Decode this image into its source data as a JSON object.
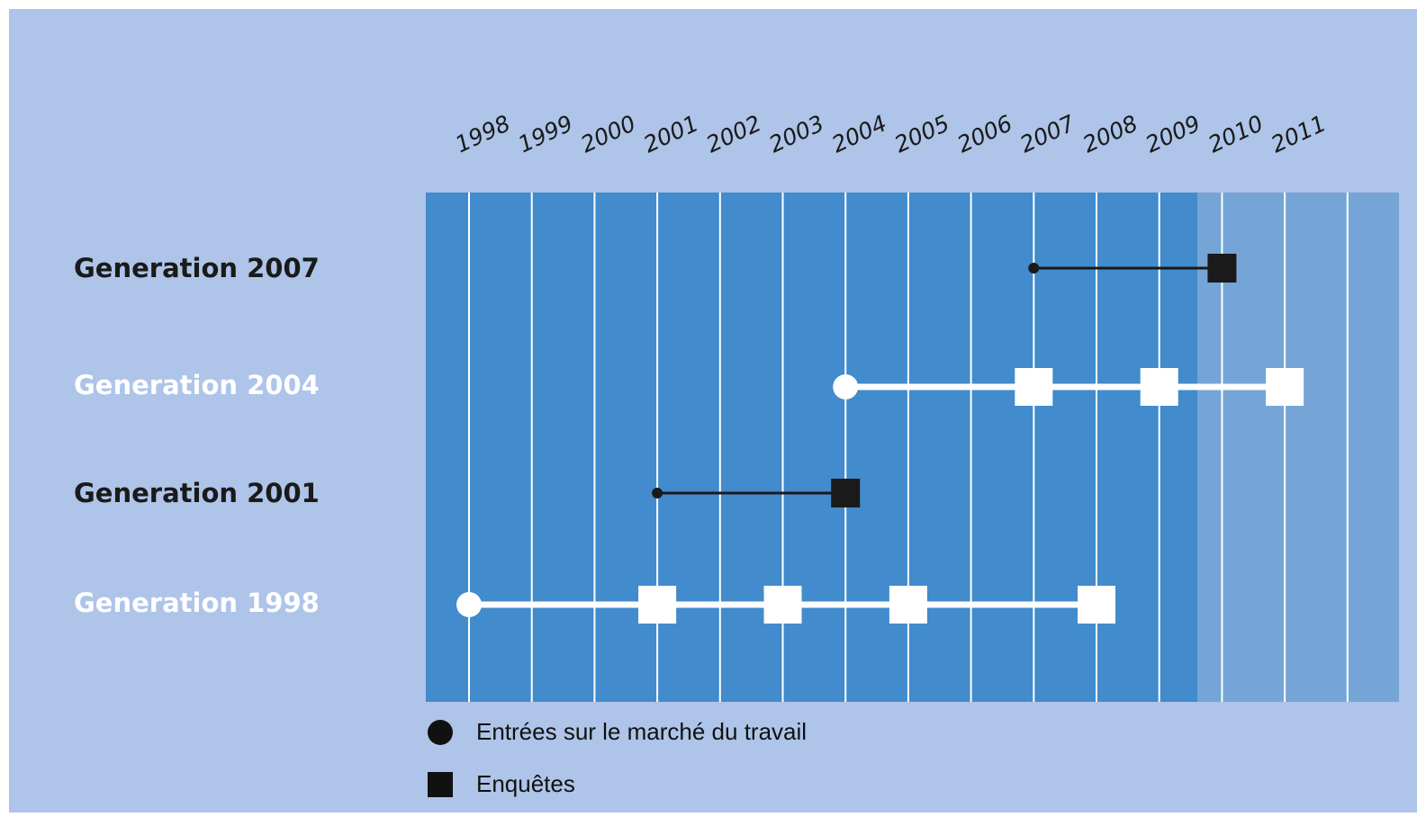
{
  "chart_data": {
    "type": "timeline",
    "years": [
      "1998",
      "1999",
      "2000",
      "2001",
      "2002",
      "2003",
      "2004",
      "2005",
      "2006",
      "2007",
      "2008",
      "2009",
      "2010",
      "2011"
    ],
    "generations": [
      {
        "label": "Generation 2007",
        "entry": 2007,
        "surveys": [
          2010
        ],
        "style": "dark"
      },
      {
        "label": "Generation 2004",
        "entry": 2004,
        "surveys": [
          2007,
          2009,
          2011
        ],
        "style": "light"
      },
      {
        "label": "Generation 2001",
        "entry": 2001,
        "surveys": [
          2004
        ],
        "style": "dark"
      },
      {
        "label": "Generation 1998",
        "entry": 1998,
        "surveys": [
          2001,
          2003,
          2005,
          2008
        ],
        "style": "light"
      }
    ],
    "legend": {
      "entry_label": "Entrées sur le marché du travail",
      "survey_label": "Enquêtes"
    }
  },
  "colors": {
    "background": "#aec4e8",
    "grid_past": "#428bcc",
    "grid_future": "#75a5d6",
    "dark_marker": "#1a1a1a",
    "light_marker": "#ffffff"
  }
}
